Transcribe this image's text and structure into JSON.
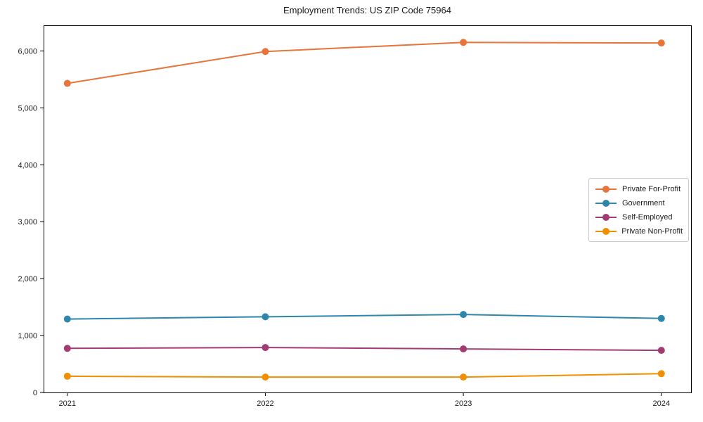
{
  "chart_data": {
    "type": "line",
    "title": "Employment Trends: US ZIP Code 75964",
    "xlabel": "",
    "ylabel": "",
    "x": [
      2021,
      2022,
      2023,
      2024
    ],
    "x_tick_labels": [
      "2021",
      "2022",
      "2023",
      "2024"
    ],
    "series": [
      {
        "name": "Private For-Profit",
        "color": "#E8743B",
        "values": [
          5430,
          5990,
          6150,
          6140
        ]
      },
      {
        "name": "Government",
        "color": "#2E86AB",
        "values": [
          1290,
          1330,
          1370,
          1300
        ]
      },
      {
        "name": "Self-Employed",
        "color": "#A23B72",
        "values": [
          775,
          790,
          765,
          740
        ]
      },
      {
        "name": "Private Non-Profit",
        "color": "#F18F01",
        "values": [
          285,
          270,
          270,
          330
        ]
      }
    ],
    "yticks": [
      0,
      1000,
      2000,
      3000,
      4000,
      5000,
      6000
    ],
    "ytick_labels": [
      "0",
      "1,000",
      "2,000",
      "3,000",
      "4,000",
      "5,000",
      "6,000"
    ],
    "xlim": [
      2020.88,
      2024.15
    ],
    "ylim": [
      0,
      6450
    ],
    "grid": false,
    "legend_position": "right-middle",
    "marker": "circle",
    "axis_color": "#000000",
    "background_color": "#ffffff"
  }
}
